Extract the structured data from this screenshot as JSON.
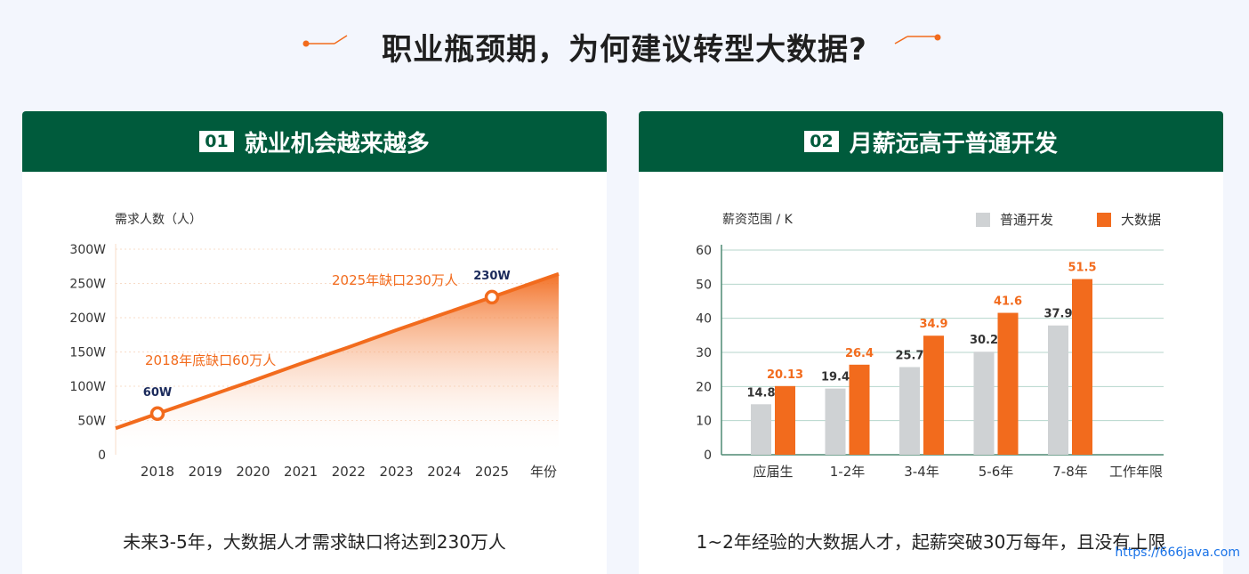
{
  "page": {
    "title": "职业瓶颈期，为何建议转型大数据?"
  },
  "watermark": "https://666java.com",
  "cards": [
    {
      "num": "01",
      "title": "就业机会越来越多",
      "caption": "未来3-5年，大数据人才需求缺口将达到230万人"
    },
    {
      "num": "02",
      "title": "月薪远高于普通开发",
      "caption": "1~2年经验的大数据人才，起薪突破30万每年，且没有上限"
    }
  ],
  "colors": {
    "header_bg": "#005b3c",
    "accent": "#f26b1d",
    "gray_bar": "#cfd2d4",
    "point_label": "#1b2a5b"
  },
  "chart_data": [
    {
      "type": "area",
      "ylabel": "需求人数（人）",
      "xlabel": "年份",
      "ylim": [
        0,
        300
      ],
      "yticks": [
        "0",
        "50W",
        "100W",
        "150W",
        "200W",
        "250W",
        "300W"
      ],
      "yticks_values": [
        0,
        50,
        100,
        150,
        200,
        250,
        300
      ],
      "categories": [
        "2018",
        "2019",
        "2020",
        "2021",
        "2022",
        "2023",
        "2024",
        "2025"
      ],
      "series": [
        {
          "values": [
            60,
            84,
            108,
            133,
            157,
            182,
            206,
            230
          ]
        }
      ],
      "highlights": [
        {
          "x": "2018",
          "value": 60,
          "label": "60W",
          "annotation": "2018年底缺口60万人"
        },
        {
          "x": "2025",
          "value": 230,
          "label": "230W",
          "annotation": "2025年缺口230万人"
        }
      ],
      "grid": true
    },
    {
      "type": "bar",
      "ylabel": "薪资范围 / K",
      "xlabel": "工作年限",
      "ylim": [
        0,
        60
      ],
      "yticks": [
        0,
        10,
        20,
        30,
        40,
        50,
        60
      ],
      "categories": [
        "应届生",
        "1-2年",
        "3-4年",
        "5-6年",
        "7-8年"
      ],
      "series": [
        {
          "name": "普通开发",
          "color": "#cfd2d4",
          "values": [
            14.8,
            19.4,
            25.7,
            30.2,
            37.9
          ],
          "labels": [
            "14.8",
            "19.4",
            "25.7",
            "30.2",
            "37.9"
          ]
        },
        {
          "name": "大数据",
          "color": "#f26b1d",
          "values": [
            20.13,
            26.4,
            34.9,
            41.6,
            51.5
          ],
          "labels": [
            "20.13",
            "26.4",
            "34.9",
            "41.6",
            "51.5"
          ]
        }
      ],
      "legend": "top-right",
      "grid": true
    }
  ]
}
